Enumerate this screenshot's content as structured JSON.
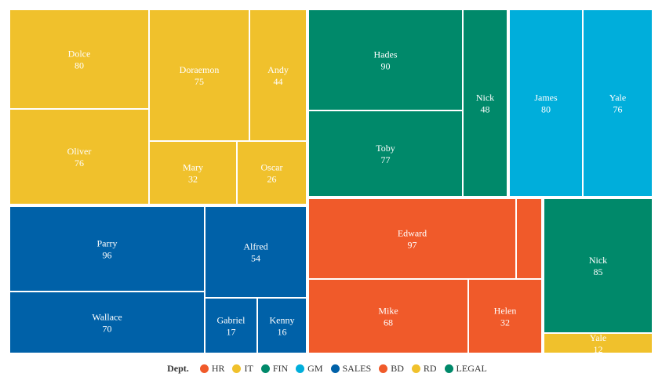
{
  "chart_data": {
    "type": "treemap",
    "legend": {
      "title": "Dept.",
      "placement": "bottom-center",
      "entries": [
        {
          "name": "HR",
          "color": "#f05a2a"
        },
        {
          "name": "IT",
          "color": "#f0c12c"
        },
        {
          "name": "FIN",
          "color": "#00896a"
        },
        {
          "name": "GM",
          "color": "#00aedb"
        },
        {
          "name": "SALES",
          "color": "#0061a8"
        },
        {
          "name": "BD",
          "color": "#f05a2a"
        },
        {
          "name": "RD",
          "color": "#f0c12c"
        },
        {
          "name": "LEGAL",
          "color": "#00896a"
        }
      ]
    },
    "cells": [
      {
        "name": "Dolce",
        "value": 80,
        "color": "#f0c12c"
      },
      {
        "name": "Oliver",
        "value": 76,
        "color": "#f0c12c"
      },
      {
        "name": "Doraemon",
        "value": 75,
        "color": "#f0c12c"
      },
      {
        "name": "Andy",
        "value": 44,
        "color": "#f0c12c"
      },
      {
        "name": "Mary",
        "value": 32,
        "color": "#f0c12c"
      },
      {
        "name": "Oscar",
        "value": 26,
        "color": "#f0c12c"
      },
      {
        "name": "Hades",
        "value": 90,
        "color": "#00896a"
      },
      {
        "name": "Toby",
        "value": 77,
        "color": "#00896a"
      },
      {
        "name": "Nick",
        "value": 48,
        "color": "#00896a"
      },
      {
        "name": "James",
        "value": 80,
        "color": "#00aedb"
      },
      {
        "name": "Yale",
        "value": 76,
        "color": "#00aedb"
      },
      {
        "name": "Parry",
        "value": 96,
        "color": "#0061a8"
      },
      {
        "name": "Wallace",
        "value": 70,
        "color": "#0061a8"
      },
      {
        "name": "Alfred",
        "value": 54,
        "color": "#0061a8"
      },
      {
        "name": "Gabriel",
        "value": 17,
        "color": "#0061a8"
      },
      {
        "name": "Kenny",
        "value": 16,
        "color": "#0061a8"
      },
      {
        "name": "Edward",
        "value": 97,
        "color": "#f05a2a"
      },
      {
        "name": "",
        "value": null,
        "color": "#f05a2a"
      },
      {
        "name": "Mike",
        "value": 68,
        "color": "#f05a2a"
      },
      {
        "name": "Helen",
        "value": 32,
        "color": "#f05a2a"
      },
      {
        "name": "Nick",
        "value": 85,
        "color": "#00896a"
      },
      {
        "name": "Yale",
        "value": 12,
        "color": "#f0c12c"
      }
    ]
  }
}
